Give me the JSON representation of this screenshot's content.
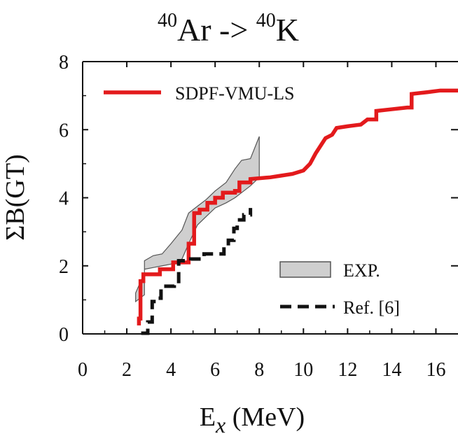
{
  "chart_data": {
    "type": "line",
    "title": {
      "parent_mass": "40",
      "parent_symbol": "Ar",
      "arrow": " -> ",
      "daughter_mass": "40",
      "daughter_symbol": "K"
    },
    "xlabel": {
      "main": "E",
      "subscript": "x",
      "unit": " (MeV)"
    },
    "ylabel": "ΣB(GT)",
    "xlim": [
      0,
      17
    ],
    "ylim": [
      0,
      8
    ],
    "xticks": [
      0,
      2,
      4,
      6,
      8,
      10,
      12,
      14,
      16
    ],
    "yticks": [
      0,
      2,
      4,
      6,
      8
    ],
    "grid": false,
    "legend_placement": "top-left (SDPF-VMU-LS); bottom-right (EXP., Ref. [6])",
    "series": [
      {
        "name": "SDPF-VMU-LS",
        "style": "solid",
        "color": "#e31a1c",
        "points": [
          [
            2.55,
            0.25
          ],
          [
            2.55,
            0.45
          ],
          [
            2.62,
            0.45
          ],
          [
            2.62,
            1.55
          ],
          [
            2.75,
            1.55
          ],
          [
            2.75,
            1.75
          ],
          [
            3.5,
            1.75
          ],
          [
            3.5,
            1.9
          ],
          [
            4.1,
            1.9
          ],
          [
            4.1,
            2.1
          ],
          [
            4.8,
            2.1
          ],
          [
            4.8,
            2.65
          ],
          [
            5.05,
            2.65
          ],
          [
            5.05,
            3.55
          ],
          [
            5.3,
            3.55
          ],
          [
            5.3,
            3.65
          ],
          [
            5.65,
            3.65
          ],
          [
            5.65,
            3.85
          ],
          [
            6.0,
            3.85
          ],
          [
            6.0,
            4.0
          ],
          [
            6.35,
            4.0
          ],
          [
            6.35,
            4.15
          ],
          [
            6.9,
            4.15
          ],
          [
            6.9,
            4.2
          ],
          [
            7.1,
            4.2
          ],
          [
            7.1,
            4.45
          ],
          [
            7.6,
            4.45
          ],
          [
            7.6,
            4.55
          ],
          [
            8.5,
            4.6
          ],
          [
            9.0,
            4.65
          ],
          [
            9.5,
            4.7
          ],
          [
            10.0,
            4.8
          ],
          [
            10.3,
            5.0
          ],
          [
            10.55,
            5.3
          ],
          [
            10.8,
            5.55
          ],
          [
            11.0,
            5.75
          ],
          [
            11.3,
            5.85
          ],
          [
            11.5,
            6.05
          ],
          [
            12.0,
            6.1
          ],
          [
            12.6,
            6.15
          ],
          [
            12.9,
            6.3
          ],
          [
            13.3,
            6.3
          ],
          [
            13.3,
            6.55
          ],
          [
            14.0,
            6.6
          ],
          [
            14.7,
            6.65
          ],
          [
            14.9,
            6.65
          ],
          [
            14.9,
            7.05
          ],
          [
            15.6,
            7.1
          ],
          [
            16.2,
            7.15
          ],
          [
            17.0,
            7.15
          ]
        ]
      },
      {
        "name": "Ref. [6]",
        "style": "dashed",
        "color": "#111111",
        "points": [
          [
            2.65,
            0.02
          ],
          [
            2.95,
            0.02
          ],
          [
            2.95,
            0.35
          ],
          [
            3.15,
            0.35
          ],
          [
            3.15,
            0.95
          ],
          [
            3.35,
            0.95
          ],
          [
            3.35,
            1.05
          ],
          [
            3.55,
            1.05
          ],
          [
            3.55,
            1.4
          ],
          [
            4.15,
            1.4
          ],
          [
            4.15,
            1.45
          ],
          [
            4.35,
            1.45
          ],
          [
            4.35,
            2.15
          ],
          [
            4.9,
            2.15
          ],
          [
            4.9,
            2.2
          ],
          [
            5.5,
            2.2
          ],
          [
            5.5,
            2.35
          ],
          [
            6.4,
            2.35
          ],
          [
            6.4,
            2.55
          ],
          [
            6.6,
            2.55
          ],
          [
            6.6,
            2.75
          ],
          [
            6.85,
            2.75
          ],
          [
            6.85,
            3.1
          ],
          [
            7.0,
            3.1
          ],
          [
            7.0,
            3.35
          ],
          [
            7.3,
            3.35
          ],
          [
            7.3,
            3.5
          ],
          [
            7.6,
            3.5
          ],
          [
            7.6,
            3.7
          ]
        ]
      }
    ],
    "bands": [
      {
        "name": "EXP.",
        "fill": "#cfcfcf",
        "stroke": "#555555",
        "x": [
          2.4,
          2.8,
          2.8,
          3.2,
          3.6,
          4.0,
          4.5,
          4.8,
          5.2,
          5.6,
          6.0,
          6.5,
          6.9,
          7.2,
          7.6,
          8.0
        ],
        "upper": [
          1.2,
          1.8,
          2.15,
          2.3,
          2.35,
          2.65,
          3.05,
          3.55,
          3.75,
          3.95,
          4.2,
          4.45,
          4.85,
          5.1,
          5.15,
          5.8
        ],
        "lower": [
          0.95,
          1.15,
          1.9,
          1.95,
          2.0,
          2.05,
          2.2,
          2.65,
          3.2,
          3.45,
          3.7,
          3.85,
          4.0,
          4.15,
          4.35,
          4.6
        ]
      }
    ]
  }
}
